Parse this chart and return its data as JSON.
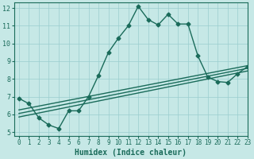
{
  "xlabel": "Humidex (Indice chaleur)",
  "xlim": [
    -0.5,
    23
  ],
  "ylim": [
    4.8,
    12.3
  ],
  "yticks": [
    5,
    6,
    7,
    8,
    9,
    10,
    11,
    12
  ],
  "xticks": [
    0,
    1,
    2,
    3,
    4,
    5,
    6,
    7,
    8,
    9,
    10,
    11,
    12,
    13,
    14,
    15,
    16,
    17,
    18,
    19,
    20,
    21,
    22,
    23
  ],
  "bg_color": "#c6e8e6",
  "line_color": "#1a6b5a",
  "series1_x": [
    0,
    1,
    2,
    3,
    4,
    5,
    6,
    7,
    8,
    9,
    10,
    11,
    12,
    13,
    14,
    15,
    16,
    17,
    18,
    19,
    20,
    21,
    22,
    23
  ],
  "series1_y": [
    6.9,
    6.6,
    5.8,
    5.4,
    5.2,
    6.2,
    6.2,
    7.0,
    8.2,
    9.5,
    10.3,
    11.0,
    12.1,
    11.35,
    11.05,
    11.65,
    11.1,
    11.1,
    9.3,
    8.1,
    7.85,
    7.8,
    8.3,
    8.7
  ],
  "series2_x": [
    0,
    23
  ],
  "series2_y": [
    5.85,
    8.45
  ],
  "series3_x": [
    0,
    23
  ],
  "series3_y": [
    6.05,
    8.6
  ],
  "series4_x": [
    0,
    23
  ],
  "series4_y": [
    6.25,
    8.75
  ],
  "markersize": 2.5,
  "linewidth": 1.0
}
